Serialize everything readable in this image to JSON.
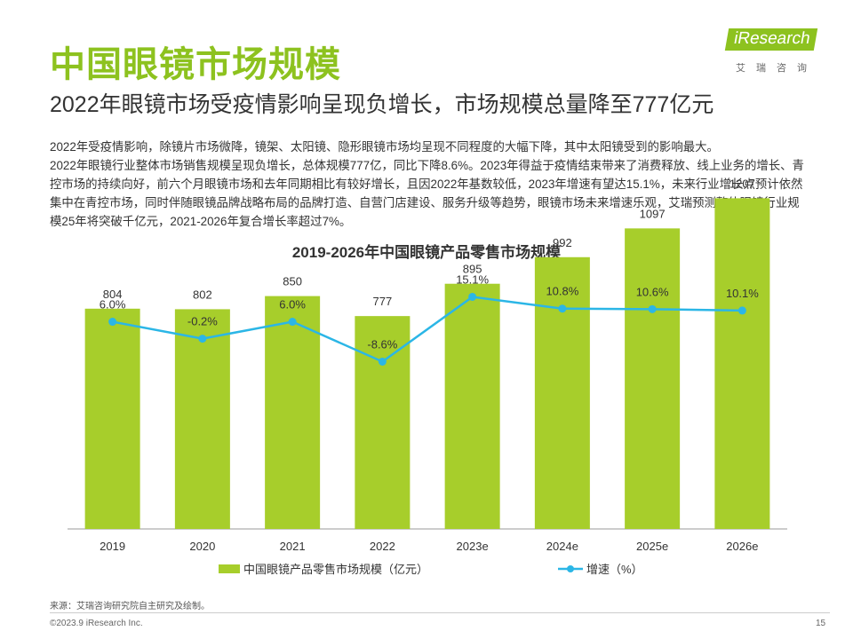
{
  "header": {
    "title": "中国眼镜市场规模",
    "subtitle": "2022年眼镜市场受疫情影响呈现负增长，市场规模总量降至777亿元"
  },
  "logo": {
    "brand": "iResearch",
    "cn": "艾瑞咨询"
  },
  "body": {
    "line1": "2022年受疫情影响，除镜片市场微降，镜架、太阳镜、隐形眼镜市场均呈现不同程度的大幅下降，其中太阳镜受到的影响最大。",
    "line2": "2022年眼镜行业整体市场销售规模呈现负增长，总体规模777亿，同比下降8.6%。2023年得益于疫情结束带来了消费释放、线上业务的增长、青控市场的持续向好，前六个月眼镜市场和去年同期相比有较好增长，且因2022年基数较低，2023年增速有望达15.1%，未来行业增长点预计依然集中在青控市场，同时伴随眼镜品牌战略布局的品牌打造、自营门店建设、服务升级等趋势，眼镜市场未来增速乐观，艾瑞预测整体眼镜行业规模25年将突破千亿元，2021-2026年复合增长率超过7%。"
  },
  "chart_data": {
    "type": "bar",
    "title": "2019-2026年中国眼镜产品零售市场规模",
    "categories": [
      "2019",
      "2020",
      "2021",
      "2022",
      "2023e",
      "2024e",
      "2025e",
      "2026e"
    ],
    "series": [
      {
        "name": "中国眼镜产品零售市场规模（亿元）",
        "type": "bar",
        "values": [
          804,
          802,
          850,
          777,
          895,
          992,
          1097,
          1207
        ],
        "color": "#a7ce2b"
      },
      {
        "name": "增速（%）",
        "type": "line",
        "values": [
          6.0,
          -0.2,
          6.0,
          -8.6,
          15.1,
          10.8,
          10.6,
          10.1
        ],
        "labels": [
          "6.0%",
          "-0.2%",
          "6.0%",
          "-8.6%",
          "15.1%",
          "10.8%",
          "10.6%",
          "10.1%"
        ],
        "color": "#2bb6e6"
      }
    ],
    "legend_position": "bottom",
    "grid": false
  },
  "footer": {
    "source": "来源：艾瑞咨询研究院自主研究及绘制。",
    "copyright": "©2023.9 iResearch Inc.",
    "page": "15"
  }
}
